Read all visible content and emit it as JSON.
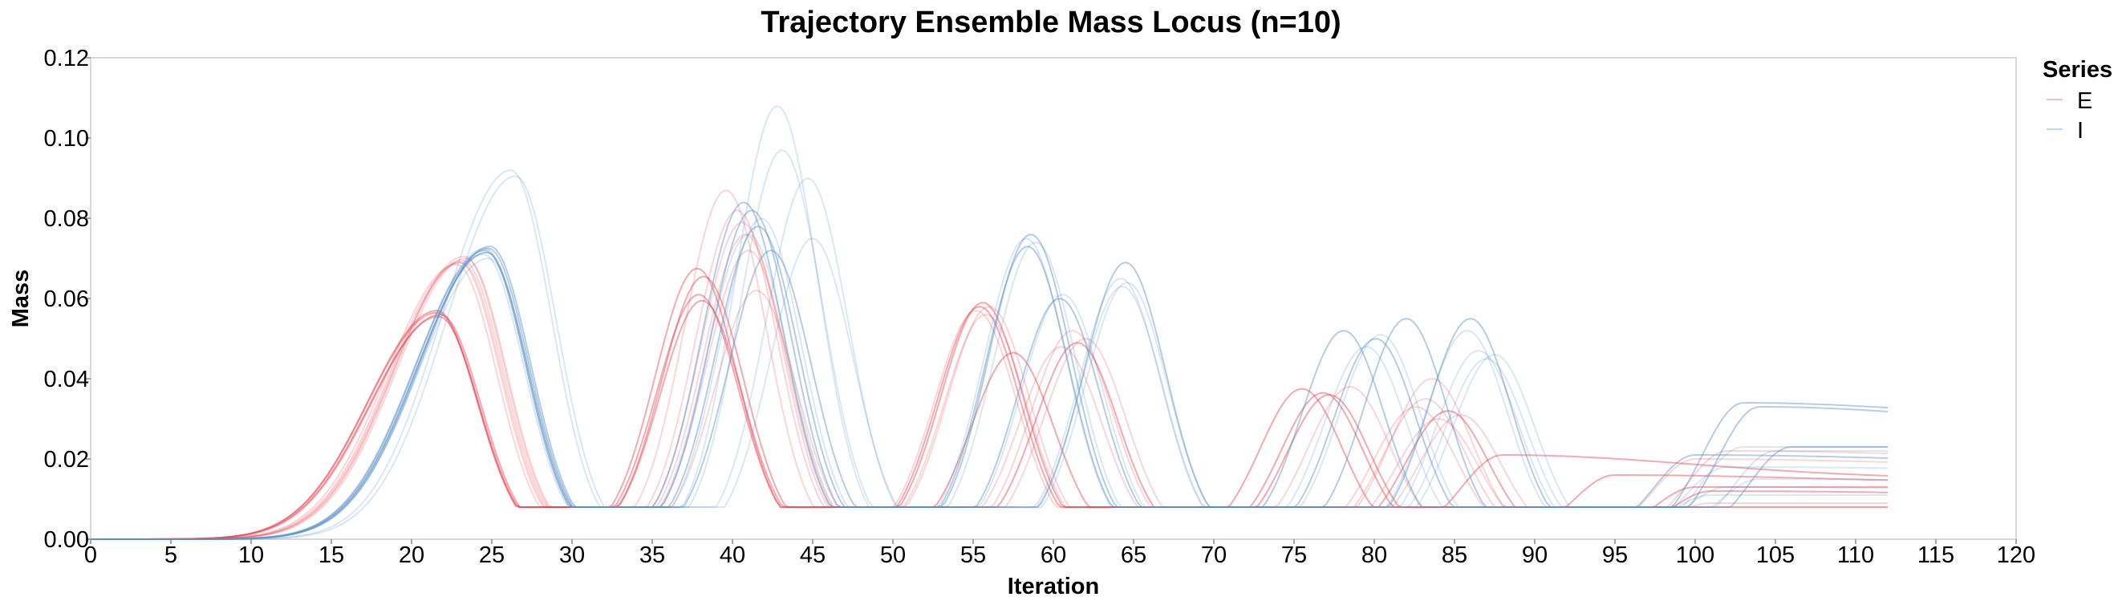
{
  "chart_data": {
    "type": "line",
    "title": "Trajectory Ensemble Mass Locus (n=10)",
    "xlabel": "Iteration",
    "ylabel": "Mass",
    "xlim": [
      0,
      120
    ],
    "ylim": [
      0,
      0.12
    ],
    "x_ticks": [
      0,
      5,
      10,
      15,
      20,
      25,
      30,
      35,
      40,
      45,
      50,
      55,
      60,
      65,
      70,
      75,
      80,
      85,
      90,
      95,
      100,
      105,
      110,
      115,
      120
    ],
    "y_ticks": [
      0,
      0.02,
      0.04,
      0.06,
      0.08,
      0.1,
      0.12
    ],
    "x_tick_labels": [
      "0",
      "5",
      "10",
      "15",
      "20",
      "25",
      "30",
      "35",
      "40",
      "45",
      "50",
      "55",
      "60",
      "65",
      "70",
      "75",
      "80",
      "85",
      "90",
      "95",
      "100",
      "105",
      "110",
      "115",
      "120"
    ],
    "y_tick_labels": [
      "0.00",
      "0.02",
      "0.04",
      "0.06",
      "0.08",
      "0.10",
      "0.12"
    ],
    "grid": false,
    "legend": {
      "title": "Series",
      "position": "right",
      "entries": [
        {
          "label": "E",
          "color": "#e8434f"
        },
        {
          "label": "I",
          "color": "#5b93c7"
        }
      ]
    },
    "x_max_data": 112,
    "series": [
      {
        "name": "E",
        "color": "#e8434f",
        "runs": [
          {
            "peaks": [
              [
                21.6,
                0.0565
              ],
              [
                37.8,
                0.0675
              ],
              [
                55.6,
                0.059
              ],
              [
                75.5,
                0.0375
              ],
              [
                88,
                0.021
              ]
            ],
            "tail": 0.015
          },
          {
            "peaks": [
              [
                21.6,
                0.057
              ],
              [
                38.2,
                0.0655
              ],
              [
                57.5,
                0.0465
              ],
              [
                76.8,
                0.0365
              ],
              [
                95,
                0.016
              ]
            ],
            "tail": 0.014
          },
          {
            "peaks": [
              [
                21.8,
                0.056
              ],
              [
                37.9,
                0.061
              ],
              [
                61.5,
                0.049
              ],
              [
                77.2,
                0.036
              ],
              [
                100,
                0.013
              ]
            ],
            "tail": 0.013
          },
          {
            "peaks": [
              [
                21.7,
                0.0555
              ],
              [
                38.1,
                0.0595
              ],
              [
                55.4,
                0.058
              ],
              [
                84.6,
                0.032
              ],
              [
                101,
                0.012
              ]
            ],
            "tail": 0.011
          },
          {
            "peaks": [
              [
                23.0,
                0.069
              ],
              [
                39.6,
                0.087
              ],
              [
                56.0,
                0.058
              ],
              [
                78.5,
                0.038
              ],
              [
                102,
                0.022
              ]
            ],
            "tail": 0.02
          },
          {
            "peaks": [
              [
                23.4,
                0.07
              ],
              [
                40.3,
                0.082
              ],
              [
                61.2,
                0.052
              ],
              [
                83.6,
                0.04
              ],
              [
                100,
                0.02
              ]
            ],
            "tail": 0.018
          },
          {
            "peaks": [
              [
                23.2,
                0.0695
              ],
              [
                40.8,
                0.076
              ],
              [
                55.8,
                0.056
              ],
              [
                83.2,
                0.035
              ],
              [
                101,
                0.009
              ]
            ],
            "tail": 0.009
          },
          {
            "peaks": [
              [
                23.1,
                0.069
              ],
              [
                41.5,
                0.062
              ],
              [
                62.0,
                0.05
              ],
              [
                84.0,
                0.03
              ],
              [
                100,
                0.008
              ]
            ],
            "tail": 0.008
          },
          {
            "peaks": [
              [
                22.8,
                0.0685
              ],
              [
                40.6,
                0.079
              ],
              [
                55.2,
                0.057
              ],
              [
                82.6,
                0.033
              ],
              [
                101,
                0.007
              ]
            ],
            "tail": 0.007
          },
          {
            "peaks": [
              [
                23.3,
                0.0705
              ],
              [
                41.0,
                0.072
              ],
              [
                60.5,
                0.048
              ],
              [
                85.4,
                0.031
              ],
              [
                100,
                0.006
              ]
            ],
            "tail": 0.006
          }
        ]
      },
      {
        "name": "I",
        "color": "#5b93c7",
        "runs": [
          {
            "peaks": [
              [
                24.6,
                0.072
              ],
              [
                40.7,
                0.084
              ],
              [
                58.4,
                0.073
              ],
              [
                78.1,
                0.052
              ],
              [
                103,
                0.034
              ]
            ],
            "tail": 0.029
          },
          {
            "peaks": [
              [
                24.8,
                0.0725
              ],
              [
                41.2,
                0.082
              ],
              [
                58.6,
                0.076
              ],
              [
                80.1,
                0.05
              ],
              [
                104,
                0.033
              ]
            ],
            "tail": 0.027
          },
          {
            "peaks": [
              [
                24.7,
                0.0715
              ],
              [
                41.6,
                0.078
              ],
              [
                60.4,
                0.06
              ],
              [
                82.0,
                0.055
              ],
              [
                106,
                0.023
              ]
            ],
            "tail": 0.023
          },
          {
            "peaks": [
              [
                24.9,
                0.073
              ],
              [
                42.4,
                0.072
              ],
              [
                64.5,
                0.069
              ],
              [
                86.0,
                0.055
              ],
              [
                100,
                0.021
              ]
            ],
            "tail": 0.019
          },
          {
            "peaks": [
              [
                24.5,
                0.071
              ],
              [
                41.0,
                0.076
              ],
              [
                64.2,
                0.065
              ],
              [
                87.5,
                0.046
              ],
              [
                102,
                0.018
              ]
            ],
            "tail": 0.017
          },
          {
            "peaks": [
              [
                26.2,
                0.092
              ],
              [
                42.8,
                0.108
              ],
              [
                58.9,
                0.074
              ],
              [
                79.5,
                0.048
              ],
              [
                103,
                0.023
              ]
            ],
            "tail": 0.023
          },
          {
            "peaks": [
              [
                26.5,
                0.0905
              ],
              [
                43.1,
                0.097
              ],
              [
                64.3,
                0.063
              ],
              [
                80.4,
                0.051
              ],
              [
                105,
                0.022
              ]
            ],
            "tail": 0.022
          },
          {
            "peaks": [
              [
                24.6,
                0.0725
              ],
              [
                44.7,
                0.09
              ],
              [
                58.3,
                0.075
              ],
              [
                85.8,
                0.052
              ],
              [
                104,
                0.015
              ]
            ],
            "tail": 0.014
          },
          {
            "peaks": [
              [
                24.8,
                0.07
              ],
              [
                45.0,
                0.075
              ],
              [
                60.6,
                0.061
              ],
              [
                86.5,
                0.047
              ],
              [
                102,
                0.013
              ]
            ],
            "tail": 0.012
          },
          {
            "peaks": [
              [
                24.7,
                0.0715
              ],
              [
                41.8,
                0.08
              ],
              [
                64.6,
                0.064
              ],
              [
                87.0,
                0.045
              ],
              [
                101,
                0.011
              ]
            ],
            "tail": 0.011
          }
        ]
      }
    ]
  }
}
